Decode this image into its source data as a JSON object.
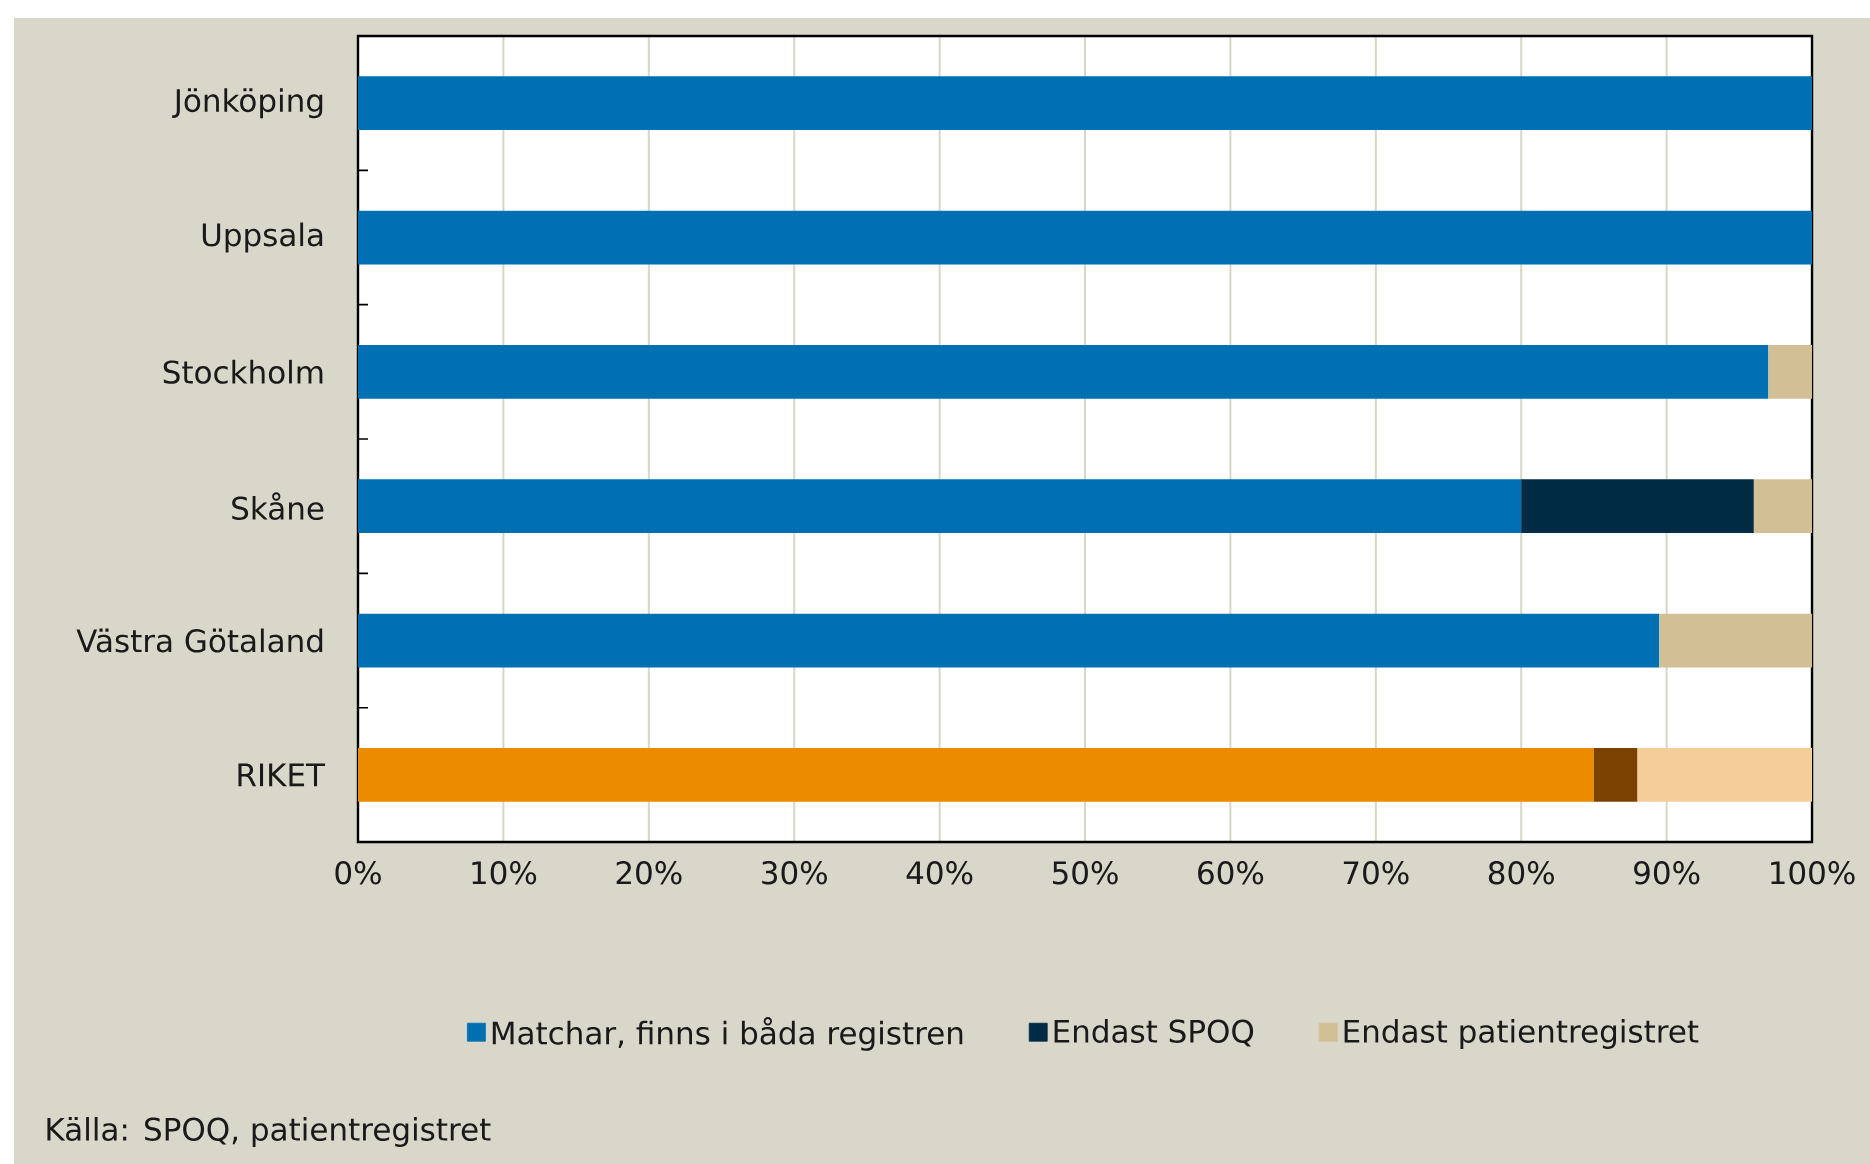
{
  "chart_data": {
    "type": "bar",
    "orientation": "horizontal",
    "stacked": true,
    "categories": [
      "Jönköping",
      "Uppsala",
      "Stockholm",
      "Skåne",
      "Västra Götaland",
      "RIKET"
    ],
    "series": [
      {
        "name": "Matchar, finns i båda registren",
        "color": "#0070b2",
        "colors": [
          "#0070b2",
          "#0070b2",
          "#0070b2",
          "#0070b2",
          "#0070b2",
          "#ec8b00"
        ],
        "values": [
          100,
          100,
          97,
          80,
          89.5,
          85
        ]
      },
      {
        "name": "Endast SPOQ",
        "color": "#002b45",
        "colors": [
          "#002b45",
          "#002b45",
          "#002b45",
          "#002b45",
          "#002b45",
          "#7a4100"
        ],
        "values": [
          0,
          0,
          0,
          16,
          0,
          3
        ]
      },
      {
        "name": "Endast patientregistret",
        "color": "#d3bf95",
        "colors": [
          "#d3bf95",
          "#d3bf95",
          "#d3bf95",
          "#d3bf95",
          "#d3bf95",
          "#f5cd9b"
        ],
        "values": [
          0,
          0,
          3,
          4,
          10.5,
          12
        ]
      }
    ],
    "xlim": [
      0,
      100
    ],
    "xticks": [
      {
        "value": 0,
        "label": "0%"
      },
      {
        "value": 10,
        "label": "10%"
      },
      {
        "value": 20,
        "label": "20%"
      },
      {
        "value": 30,
        "label": "30%"
      },
      {
        "value": 40,
        "label": "40%"
      },
      {
        "value": 50,
        "label": "50%"
      },
      {
        "value": 60,
        "label": "60%"
      },
      {
        "value": 70,
        "label": "70%"
      },
      {
        "value": 80,
        "label": "80%"
      },
      {
        "value": 90,
        "label": "90%"
      },
      {
        "value": 100,
        "label": "100%"
      }
    ],
    "grid": "x",
    "legend": "bottom",
    "annotations": [
      "Källa: SPOQ, patientregistret"
    ]
  }
}
